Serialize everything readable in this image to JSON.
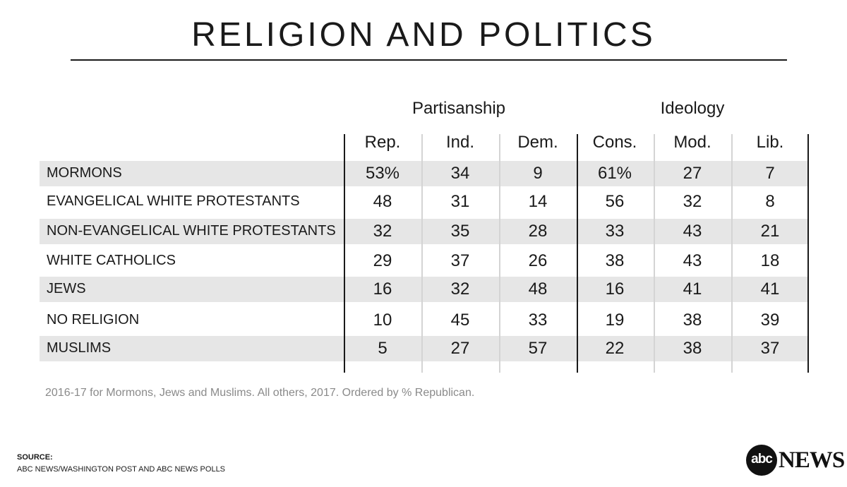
{
  "title": "RELIGION AND POLITICS",
  "chart_data": {
    "type": "table",
    "title": "RELIGION AND POLITICS",
    "groups": [
      {
        "name": "Partisanship",
        "columns": [
          "Rep.",
          "Ind.",
          "Dem."
        ]
      },
      {
        "name": "Ideology",
        "columns": [
          "Cons.",
          "Mod.",
          "Lib."
        ]
      }
    ],
    "columns": [
      "Rep.",
      "Ind.",
      "Dem.",
      "Cons.",
      "Mod.",
      "Lib."
    ],
    "rows": [
      {
        "label": "MORMONS",
        "display": [
          "53%",
          "34",
          "9",
          "61%",
          "27",
          "7"
        ],
        "values": [
          53,
          34,
          9,
          61,
          27,
          7
        ]
      },
      {
        "label": "EVANGELICAL WHITE PROTESTANTS",
        "display": [
          "48",
          "31",
          "14",
          "56",
          "32",
          "8"
        ],
        "values": [
          48,
          31,
          14,
          56,
          32,
          8
        ]
      },
      {
        "label": "NON-EVANGELICAL WHITE PROTESTANTS",
        "display": [
          "32",
          "35",
          "28",
          "33",
          "43",
          "21"
        ],
        "values": [
          32,
          35,
          28,
          33,
          43,
          21
        ]
      },
      {
        "label": "WHITE CATHOLICS",
        "display": [
          "29",
          "37",
          "26",
          "38",
          "43",
          "18"
        ],
        "values": [
          29,
          37,
          26,
          38,
          43,
          18
        ]
      },
      {
        "label": "JEWS",
        "display": [
          "16",
          "32",
          "48",
          "16",
          "41",
          "41"
        ],
        "values": [
          16,
          32,
          48,
          16,
          41,
          41
        ]
      },
      {
        "label": "NO RELIGION",
        "display": [
          "10",
          "45",
          "33",
          "19",
          "38",
          "39"
        ],
        "values": [
          10,
          45,
          33,
          19,
          38,
          39
        ]
      },
      {
        "label": "MUSLIMS",
        "display": [
          "5",
          "27",
          "57",
          "22",
          "38",
          "37"
        ],
        "values": [
          5,
          27,
          57,
          22,
          38,
          37
        ]
      }
    ],
    "units": "%"
  },
  "note": "2016-17 for Mormons, Jews and Muslims. All others, 2017. Ordered by % Republican.",
  "source": {
    "heading": "SOURCE:",
    "text": "ABC NEWS/WASHINGTON POST AND ABC NEWS POLLS"
  },
  "logo": {
    "circle_text": "abc",
    "wordmark": "NEWS"
  },
  "colors": {
    "row_shade": "#e6e6e6",
    "text": "#1a1a1a",
    "note": "#8a8a8a",
    "divider_light": "#d4d4d4"
  }
}
